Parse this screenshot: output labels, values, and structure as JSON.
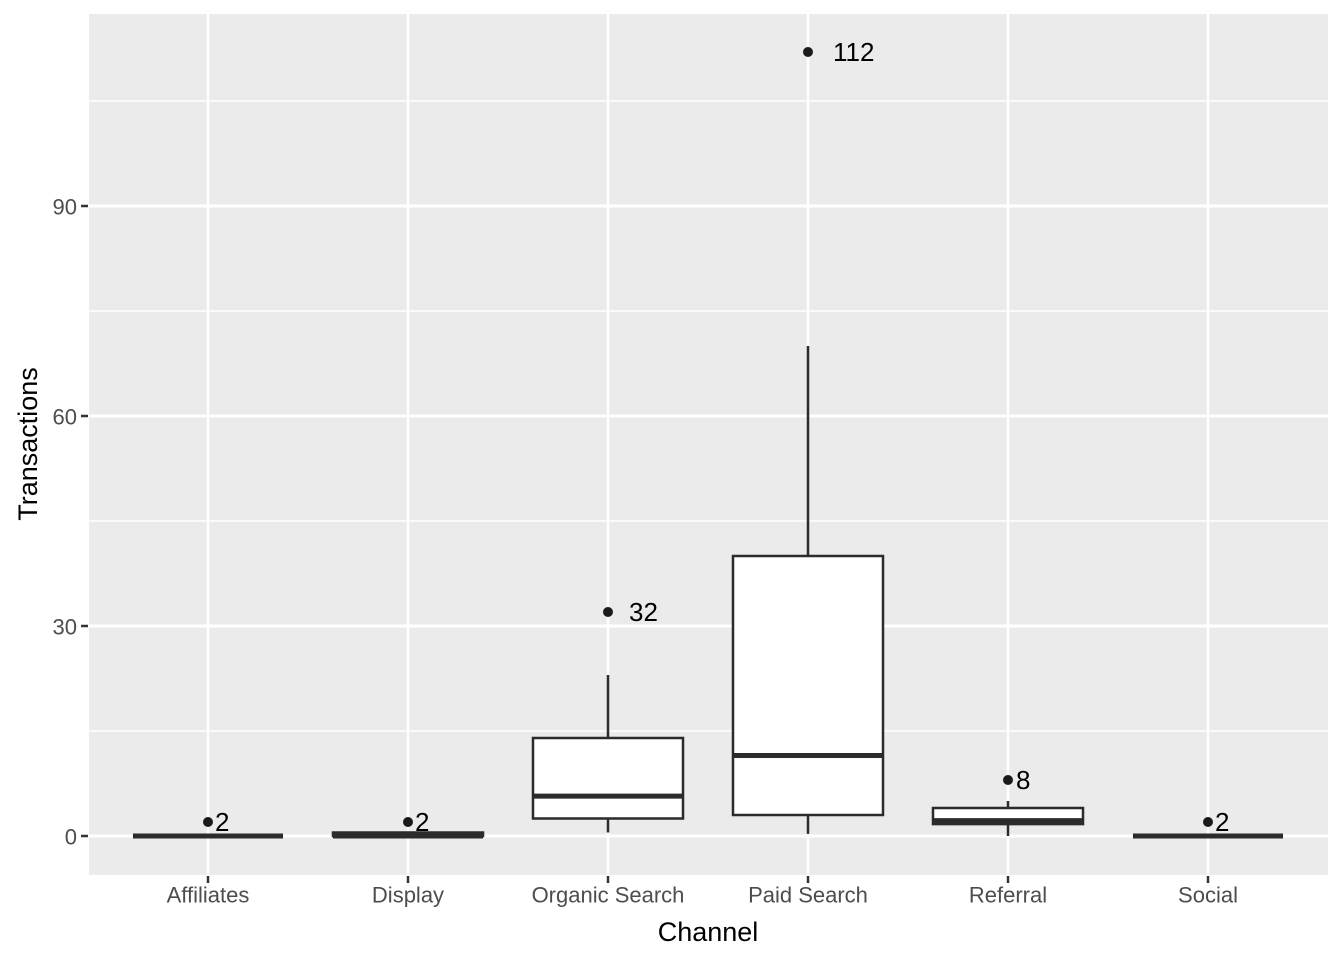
{
  "chart_data": {
    "type": "boxplot",
    "title": "",
    "xlabel": "Channel",
    "ylabel": "Transactions",
    "categories": [
      "Affiliates",
      "Display",
      "Organic Search",
      "Paid Search",
      "Referral",
      "Social"
    ],
    "y_tick_labels": [
      "0",
      "30",
      "60",
      "90"
    ],
    "y_ticks_major": [
      0,
      30,
      60,
      90
    ],
    "y_ticks_minor": [
      15,
      45,
      75,
      105
    ],
    "ylim": [
      -5.6,
      117.6
    ],
    "grid": "on",
    "legend": "none",
    "boxes": [
      {
        "category": "Affiliates",
        "whisker_low": 0,
        "q1": 0,
        "median": 0,
        "q3": 0,
        "whisker_high": 0,
        "outliers": [
          {
            "value": 2,
            "label": "2",
            "label_gap": 2
          }
        ]
      },
      {
        "category": "Display",
        "whisker_low": 0,
        "q1": 0,
        "median": 0,
        "q3": 0.5,
        "whisker_high": 0.5,
        "outliers": [
          {
            "value": 2,
            "label": "2",
            "label_gap": 2
          }
        ]
      },
      {
        "category": "Organic Search",
        "whisker_low": 0.5,
        "q1": 2.5,
        "median": 5.7,
        "q3": 14,
        "whisker_high": 23,
        "outliers": [
          {
            "value": 32,
            "label": "32",
            "label_gap": 16
          }
        ]
      },
      {
        "category": "Paid Search",
        "whisker_low": 0.3,
        "q1": 3,
        "median": 11.5,
        "q3": 40,
        "whisker_high": 70,
        "outliers": [
          {
            "value": 112,
            "label": "112",
            "label_gap": 20
          }
        ]
      },
      {
        "category": "Referral",
        "whisker_low": 0,
        "q1": 1.7,
        "median": 2.2,
        "q3": 4,
        "whisker_high": 5,
        "outliers": [
          {
            "value": 8,
            "label": "8",
            "label_gap": 3
          }
        ]
      },
      {
        "category": "Social",
        "whisker_low": 0,
        "q1": 0,
        "median": 0,
        "q3": 0,
        "whisker_high": 0,
        "outliers": [
          {
            "value": 2,
            "label": "2",
            "label_gap": 2
          }
        ]
      }
    ],
    "colors": {
      "panel_bg": "#EBEBEB",
      "grid": "#FFFFFF",
      "box_stroke": "#2B2B2B",
      "box_fill": "#FFFFFF",
      "outlier_point": "#1A1A1A",
      "tick_label": "#4D4D4D",
      "tick_mark": "#333333",
      "axis_title": "#000000",
      "annotation": "#000000"
    }
  }
}
